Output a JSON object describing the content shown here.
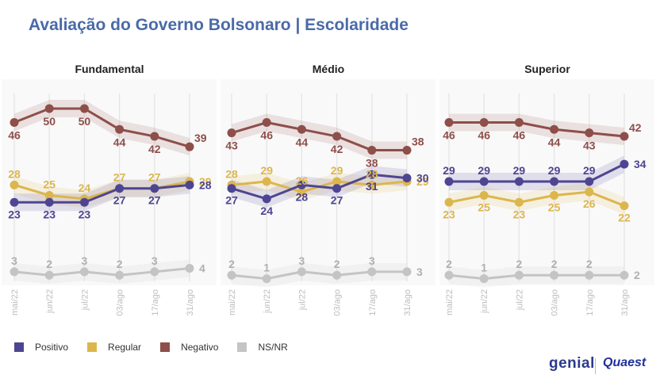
{
  "title": "Avaliação do Governo Bolsonaro | Escolaridade",
  "colors": {
    "Positivo": "#4e4592",
    "Regular": "#dcb64d",
    "Negativo": "#8e4e4a",
    "NS/NR": "#c4c4c4"
  },
  "legend": [
    {
      "label": "Positivo",
      "color": "#4e4592"
    },
    {
      "label": "Regular",
      "color": "#dcb64d"
    },
    {
      "label": "Negativo",
      "color": "#8e4e4a"
    },
    {
      "label": "NS/NR",
      "color": "#c4c4c4"
    }
  ],
  "logos": {
    "genial": "genial",
    "quaest": "Quaest"
  },
  "chart_data": [
    {
      "type": "line",
      "title": "Fundamental",
      "categories": [
        "mai/22",
        "jun/22",
        "jul/22",
        "03/ago",
        "17/ago",
        "31/ago"
      ],
      "series": [
        {
          "name": "Negativo",
          "values": [
            46,
            50,
            50,
            44,
            42,
            39
          ]
        },
        {
          "name": "Regular",
          "values": [
            28,
            25,
            24,
            27,
            27,
            29
          ]
        },
        {
          "name": "Positivo",
          "values": [
            23,
            23,
            23,
            27,
            27,
            28
          ]
        },
        {
          "name": "NS/NR",
          "values": [
            3,
            2,
            3,
            2,
            3,
            4
          ]
        }
      ]
    },
    {
      "type": "line",
      "title": "Médio",
      "categories": [
        "mai/22",
        "jun/22",
        "jul/22",
        "03/ago",
        "17/ago",
        "31/ago"
      ],
      "series": [
        {
          "name": "Negativo",
          "values": [
            43,
            46,
            44,
            42,
            38,
            38
          ]
        },
        {
          "name": "Regular",
          "values": [
            28,
            29,
            26,
            29,
            28,
            29
          ]
        },
        {
          "name": "Positivo",
          "values": [
            27,
            24,
            28,
            27,
            31,
            30
          ]
        },
        {
          "name": "NS/NR",
          "values": [
            2,
            1,
            3,
            2,
            3,
            3
          ]
        }
      ]
    },
    {
      "type": "line",
      "title": "Superior",
      "categories": [
        "mai/22",
        "jun/22",
        "jul/22",
        "03/ago",
        "17/ago",
        "31/ago"
      ],
      "series": [
        {
          "name": "Negativo",
          "values": [
            46,
            46,
            46,
            44,
            43,
            42
          ]
        },
        {
          "name": "Positivo",
          "values": [
            29,
            29,
            29,
            29,
            29,
            34
          ]
        },
        {
          "name": "Regular",
          "values": [
            23,
            25,
            23,
            25,
            26,
            22
          ]
        },
        {
          "name": "NS/NR",
          "values": [
            2,
            1,
            2,
            2,
            2,
            2
          ]
        }
      ]
    }
  ]
}
